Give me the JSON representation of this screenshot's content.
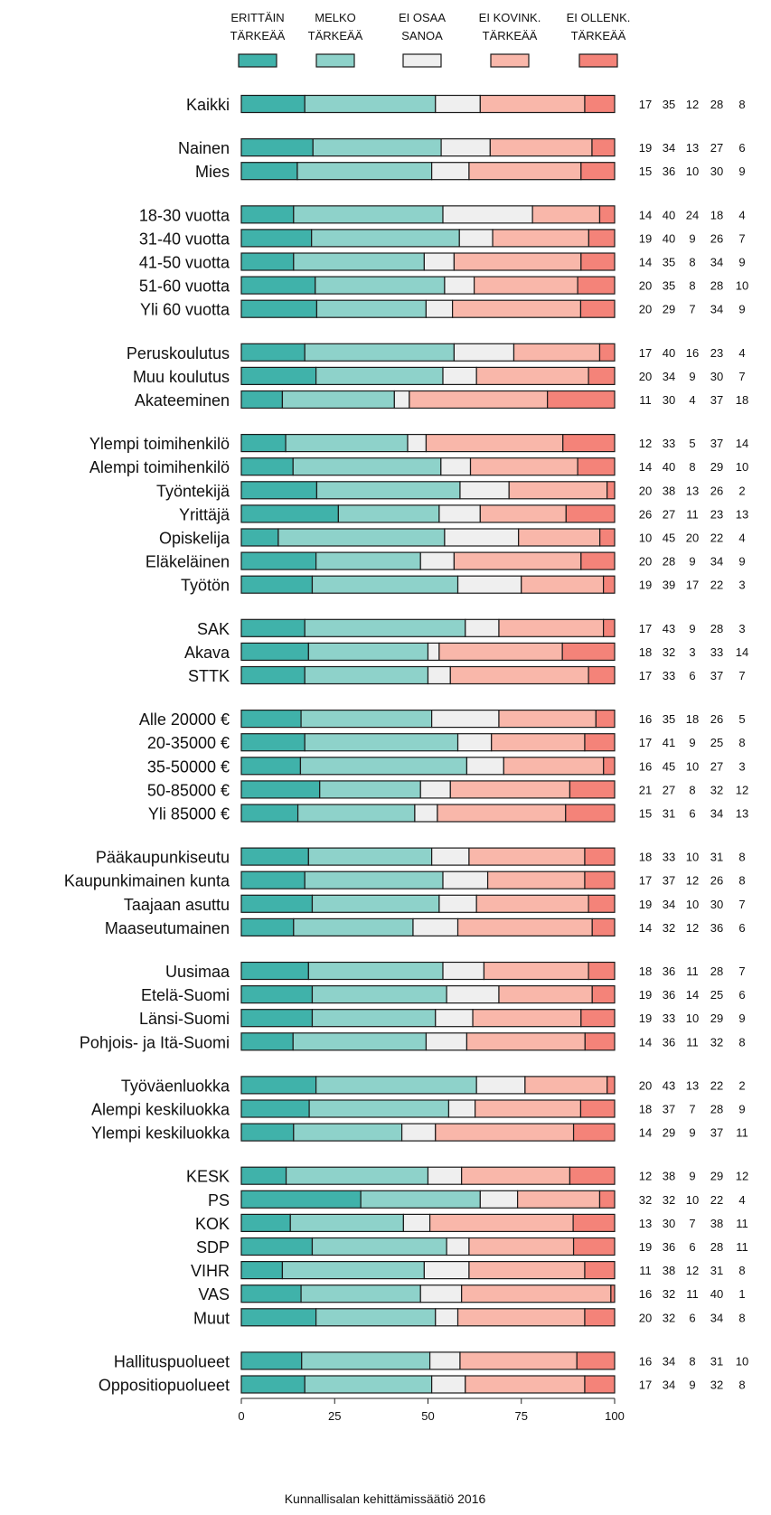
{
  "chart_data": {
    "type": "bar",
    "orientation": "horizontal",
    "stacked": true,
    "xlim": [
      0,
      100
    ],
    "x_ticks": [
      "0",
      "25",
      "50",
      "75",
      "100"
    ],
    "footer": "Kunnallisalan kehittämissäätiö 2016",
    "series": [
      {
        "name_line1": "ERITTÄIN",
        "name_line2": "TÄRKEÄÄ",
        "color": "#40b2aa"
      },
      {
        "name_line1": "MELKO",
        "name_line2": "TÄRKEÄÄ",
        "color": "#8ed2ca"
      },
      {
        "name_line1": "EI OSAA",
        "name_line2": "SANOA",
        "color": "#efefef"
      },
      {
        "name_line1": "EI KOVINK.",
        "name_line2": "TÄRKEÄÄ",
        "color": "#f9b7aa"
      },
      {
        "name_line1": "EI OLLENK.",
        "name_line2": "TÄRKEÄÄ",
        "color": "#f48379"
      }
    ],
    "groups": [
      [
        {
          "label": "Kaikki",
          "values": [
            17,
            35,
            12,
            28,
            8
          ]
        }
      ],
      [
        {
          "label": "Nainen",
          "values": [
            19,
            34,
            13,
            27,
            6
          ]
        },
        {
          "label": "Mies",
          "values": [
            15,
            36,
            10,
            30,
            9
          ]
        }
      ],
      [
        {
          "label": "18-30 vuotta",
          "values": [
            14,
            40,
            24,
            18,
            4
          ]
        },
        {
          "label": "31-40 vuotta",
          "values": [
            19,
            40,
            9,
            26,
            7
          ]
        },
        {
          "label": "41-50 vuotta",
          "values": [
            14,
            35,
            8,
            34,
            9
          ]
        },
        {
          "label": "51-60 vuotta",
          "values": [
            20,
            35,
            8,
            28,
            10
          ]
        },
        {
          "label": "Yli 60 vuotta",
          "values": [
            20,
            29,
            7,
            34,
            9
          ]
        }
      ],
      [
        {
          "label": "Peruskoulutus",
          "values": [
            17,
            40,
            16,
            23,
            4
          ]
        },
        {
          "label": "Muu koulutus",
          "values": [
            20,
            34,
            9,
            30,
            7
          ]
        },
        {
          "label": "Akateeminen",
          "values": [
            11,
            30,
            4,
            37,
            18
          ]
        }
      ],
      [
        {
          "label": "Ylempi toimihenkilö",
          "values": [
            12,
            33,
            5,
            37,
            14
          ]
        },
        {
          "label": "Alempi toimihenkilö",
          "values": [
            14,
            40,
            8,
            29,
            10
          ]
        },
        {
          "label": "Työntekijä",
          "values": [
            20,
            38,
            13,
            26,
            2
          ]
        },
        {
          "label": "Yrittäjä",
          "values": [
            26,
            27,
            11,
            23,
            13
          ]
        },
        {
          "label": "Opiskelija",
          "values": [
            10,
            45,
            20,
            22,
            4
          ]
        },
        {
          "label": "Eläkeläinen",
          "values": [
            20,
            28,
            9,
            34,
            9
          ]
        },
        {
          "label": "Työtön",
          "values": [
            19,
            39,
            17,
            22,
            3
          ]
        }
      ],
      [
        {
          "label": "SAK",
          "values": [
            17,
            43,
            9,
            28,
            3
          ]
        },
        {
          "label": "Akava",
          "values": [
            18,
            32,
            3,
            33,
            14
          ]
        },
        {
          "label": "STTK",
          "values": [
            17,
            33,
            6,
            37,
            7
          ]
        }
      ],
      [
        {
          "label": "Alle 20000 €",
          "values": [
            16,
            35,
            18,
            26,
            5
          ]
        },
        {
          "label": "20-35000 €",
          "values": [
            17,
            41,
            9,
            25,
            8
          ]
        },
        {
          "label": "35-50000 €",
          "values": [
            16,
            45,
            10,
            27,
            3
          ]
        },
        {
          "label": "50-85000 €",
          "values": [
            21,
            27,
            8,
            32,
            12
          ]
        },
        {
          "label": "Yli 85000 €",
          "values": [
            15,
            31,
            6,
            34,
            13
          ]
        }
      ],
      [
        {
          "label": "Pääkaupunkiseutu",
          "values": [
            18,
            33,
            10,
            31,
            8
          ]
        },
        {
          "label": "Kaupunkimainen kunta",
          "values": [
            17,
            37,
            12,
            26,
            8
          ]
        },
        {
          "label": "Taajaan asuttu",
          "values": [
            19,
            34,
            10,
            30,
            7
          ]
        },
        {
          "label": "Maaseutumainen",
          "values": [
            14,
            32,
            12,
            36,
            6
          ]
        }
      ],
      [
        {
          "label": "Uusimaa",
          "values": [
            18,
            36,
            11,
            28,
            7
          ]
        },
        {
          "label": "Etelä-Suomi",
          "values": [
            19,
            36,
            14,
            25,
            6
          ]
        },
        {
          "label": "Länsi-Suomi",
          "values": [
            19,
            33,
            10,
            29,
            9
          ]
        },
        {
          "label": "Pohjois- ja Itä-Suomi",
          "values": [
            14,
            36,
            11,
            32,
            8
          ]
        }
      ],
      [
        {
          "label": "Työväenluokka",
          "values": [
            20,
            43,
            13,
            22,
            2
          ]
        },
        {
          "label": "Alempi keskiluokka",
          "values": [
            18,
            37,
            7,
            28,
            9
          ]
        },
        {
          "label": "Ylempi keskiluokka",
          "values": [
            14,
            29,
            9,
            37,
            11
          ]
        }
      ],
      [
        {
          "label": "KESK",
          "values": [
            12,
            38,
            9,
            29,
            12
          ]
        },
        {
          "label": "PS",
          "values": [
            32,
            32,
            10,
            22,
            4
          ]
        },
        {
          "label": "KOK",
          "values": [
            13,
            30,
            7,
            38,
            11
          ]
        },
        {
          "label": "SDP",
          "values": [
            19,
            36,
            6,
            28,
            11
          ]
        },
        {
          "label": "VIHR",
          "values": [
            11,
            38,
            12,
            31,
            8
          ]
        },
        {
          "label": "VAS",
          "values": [
            16,
            32,
            11,
            40,
            1
          ]
        },
        {
          "label": "Muut",
          "values": [
            20,
            32,
            6,
            34,
            8
          ]
        }
      ],
      [
        {
          "label": "Hallituspuolueet",
          "values": [
            16,
            34,
            8,
            31,
            10
          ]
        },
        {
          "label": "Oppositiopuolueet",
          "values": [
            17,
            34,
            9,
            32,
            8
          ]
        }
      ]
    ]
  }
}
